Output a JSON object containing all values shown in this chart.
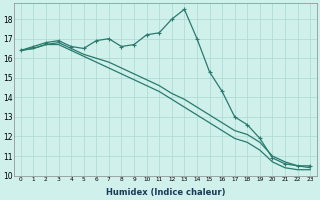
{
  "xlabel": "Humidex (Indice chaleur)",
  "ylabel": "",
  "bg_color": "#cff0eb",
  "grid_color": "#aad8d0",
  "line_color": "#2a7a6e",
  "xlim": [
    -0.5,
    23.5
  ],
  "ylim": [
    10,
    18.8
  ],
  "yticks": [
    10,
    11,
    12,
    13,
    14,
    15,
    16,
    17,
    18
  ],
  "xticks": [
    0,
    1,
    2,
    3,
    4,
    5,
    6,
    7,
    8,
    9,
    10,
    11,
    12,
    13,
    14,
    15,
    16,
    17,
    18,
    19,
    20,
    21,
    22,
    23
  ],
  "series": [
    {
      "x": [
        0,
        1,
        2,
        3,
        4,
        5,
        6,
        7,
        8,
        9,
        10,
        11,
        12,
        13,
        14,
        15,
        16,
        17,
        18,
        19,
        20,
        21,
        22,
        23
      ],
      "y": [
        16.4,
        16.6,
        16.8,
        16.9,
        16.6,
        16.5,
        16.9,
        17.0,
        16.6,
        16.7,
        17.2,
        17.3,
        18.0,
        18.5,
        17.0,
        15.3,
        14.3,
        13.0,
        12.6,
        11.9,
        10.9,
        10.6,
        10.5,
        10.5
      ],
      "marker": "+",
      "markersize": 3.5,
      "linewidth": 0.9
    },
    {
      "x": [
        0,
        1,
        2,
        3,
        4,
        5,
        6,
        7,
        8,
        9,
        10,
        11,
        12,
        13,
        14,
        15,
        16,
        17,
        18,
        19,
        20,
        21,
        22,
        23
      ],
      "y": [
        16.4,
        16.5,
        16.7,
        16.8,
        16.5,
        16.2,
        16.0,
        15.8,
        15.5,
        15.2,
        14.9,
        14.6,
        14.2,
        13.9,
        13.5,
        13.1,
        12.7,
        12.3,
        12.1,
        11.7,
        11.0,
        10.7,
        10.5,
        10.4
      ],
      "marker": "+",
      "markersize": 0,
      "linewidth": 0.9
    },
    {
      "x": [
        0,
        1,
        2,
        3,
        4,
        5,
        6,
        7,
        8,
        9,
        10,
        11,
        12,
        13,
        14,
        15,
        16,
        17,
        18,
        19,
        20,
        21,
        22,
        23
      ],
      "y": [
        16.4,
        16.5,
        16.7,
        16.7,
        16.4,
        16.1,
        15.8,
        15.5,
        15.2,
        14.9,
        14.6,
        14.3,
        13.9,
        13.5,
        13.1,
        12.7,
        12.3,
        11.9,
        11.7,
        11.3,
        10.7,
        10.4,
        10.3,
        10.3
      ],
      "marker": "+",
      "markersize": 0,
      "linewidth": 0.9
    }
  ]
}
